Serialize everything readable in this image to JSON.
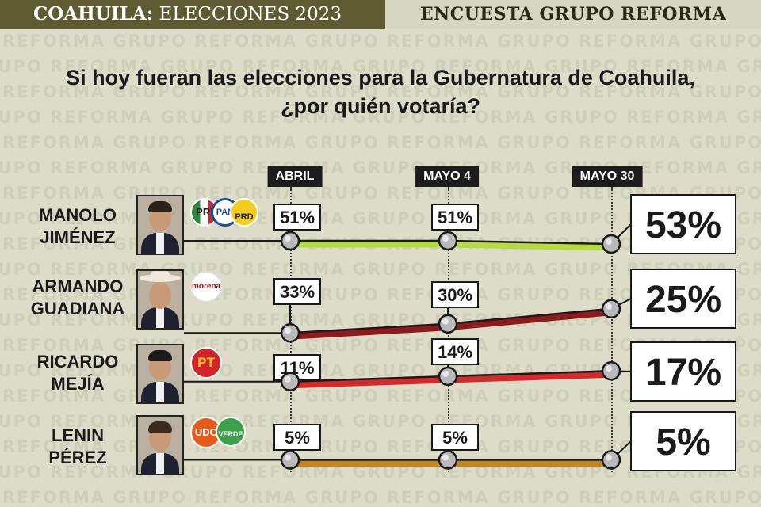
{
  "header": {
    "left_bold": "COAHUILA:",
    "left_rest": " ELECCIONES 2023",
    "right": "ENCUESTA GRUPO REFORMA"
  },
  "watermark_text": "GRUPO REFORMA",
  "question_line1": "Si hoy fueran las elecciones para la Gubernatura de Coahuila,",
  "question_line2": "¿por quién votaría?",
  "parties": {
    "manolo": [
      "PRI",
      "PAN",
      "PRD"
    ],
    "armando": [
      "morena"
    ],
    "ricardo": [
      "PT"
    ],
    "lenin": [
      "UDC",
      "VERDE"
    ]
  },
  "colors": {
    "header_bg": "#5e5b33",
    "background": "#dcdcc8",
    "manolo": "#b4dc3c",
    "armando": "#8e1a1c",
    "ricardo": "#d42a2a",
    "lenin": "#c8851e"
  },
  "chart_data": {
    "type": "line",
    "title": "Si hoy fueran las elecciones para la Gubernatura de Coahuila, ¿por quién votaría?",
    "categories": [
      "ABRIL",
      "MAYO 4",
      "MAYO 30"
    ],
    "unit": "%",
    "series": [
      {
        "name": "MANOLO JIMÉNEZ",
        "name_line1": "MANOLO",
        "name_line2": "JIMÉNEZ",
        "values": [
          51,
          51,
          53
        ],
        "labels": [
          "51%",
          "51%",
          "53%"
        ]
      },
      {
        "name": "ARMANDO GUADIANA",
        "name_line1": "ARMANDO",
        "name_line2": "GUADIANA",
        "values": [
          33,
          30,
          25
        ],
        "labels": [
          "33%",
          "30%",
          "25%"
        ]
      },
      {
        "name": "RICARDO MEJÍA",
        "name_line1": "RICARDO",
        "name_line2": "MEJÍA",
        "values": [
          11,
          14,
          17
        ],
        "labels": [
          "11%",
          "14%",
          "17%"
        ]
      },
      {
        "name": "LENIN PÉREZ",
        "name_line1": "LENIN",
        "name_line2": "PÉREZ",
        "values": [
          5,
          5,
          5
        ],
        "labels": [
          "5%",
          "5%",
          "5%"
        ]
      }
    ]
  }
}
